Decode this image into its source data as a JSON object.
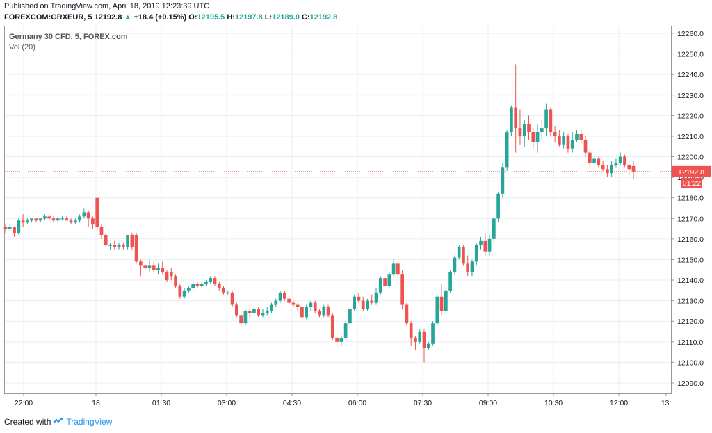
{
  "header": {
    "published": "Published on TradingView.com, April 18, 2019 12:23:39 UTC",
    "symbol_line": "FOREXCOM:GRXEUR, 5",
    "last": "12192.8",
    "change": "+18.4 (+0.15%)",
    "o_label": "O:",
    "o_value": "12195.5",
    "h_label": "H:",
    "h_value": "12197.8",
    "l_label": "L:",
    "l_value": "12189.0",
    "c_label": "C:",
    "c_value": "12192.8"
  },
  "legend": {
    "symbol": "Germany 30 CFD, 5, FOREX.com",
    "volume": "Vol (20)"
  },
  "footer": {
    "created_with": "Created with",
    "brand": "TradingView"
  },
  "chart_data": {
    "type": "candlestick",
    "ylim": [
      12085,
      12265
    ],
    "y_ticks": [
      12090,
      12100,
      12110,
      12120,
      12130,
      12140,
      12150,
      12160,
      12170,
      12180,
      12190,
      12200,
      12210,
      12220,
      12230,
      12240,
      12250,
      12260
    ],
    "x_ticks": [
      "22:00",
      "18",
      "01:30",
      "03:00",
      "04:30",
      "06:00",
      "07:30",
      "09:00",
      "10:30",
      "12:00",
      "13:"
    ],
    "last_price": 12192.8,
    "last_price_label": "12192.8",
    "countdown": "01:22",
    "colors": {
      "up": "#26a69a",
      "down": "#ef5350",
      "grid": "#e9ecf1",
      "price_line": "#ef5350"
    },
    "candles": [
      [
        12166,
        12167,
        12163,
        12165
      ],
      [
        12165,
        12167,
        12164,
        12166
      ],
      [
        12166,
        12166,
        12161,
        12163
      ],
      [
        12163,
        12170,
        12162,
        12169
      ],
      [
        12169,
        12172,
        12166,
        12168
      ],
      [
        12168,
        12170,
        12167,
        12169
      ],
      [
        12169,
        12170,
        12168,
        12170
      ],
      [
        12170,
        12170,
        12168,
        12169
      ],
      [
        12169,
        12170,
        12168,
        12170
      ],
      [
        12170,
        12172,
        12169,
        12171
      ],
      [
        12171,
        12172,
        12169,
        12170
      ],
      [
        12170,
        12171,
        12168,
        12169
      ],
      [
        12169,
        12171,
        12168,
        12170
      ],
      [
        12170,
        12171,
        12169,
        12170
      ],
      [
        12170,
        12171,
        12169,
        12169
      ],
      [
        12169,
        12170,
        12167,
        12168
      ],
      [
        12168,
        12170,
        12167,
        12169
      ],
      [
        12169,
        12172,
        12168,
        12171
      ],
      [
        12171,
        12175,
        12170,
        12173
      ],
      [
        12173,
        12174,
        12166,
        12170
      ],
      [
        12170,
        12171,
        12165,
        12167
      ],
      [
        12180,
        12180,
        12164,
        12166
      ],
      [
        12166,
        12167,
        12160,
        12162
      ],
      [
        12162,
        12163,
        12156,
        12157
      ],
      [
        12157,
        12158,
        12155,
        12157
      ],
      [
        12157,
        12159,
        12155,
        12156
      ],
      [
        12156,
        12158,
        12155,
        12157
      ],
      [
        12157,
        12158,
        12155,
        12156
      ],
      [
        12156,
        12162,
        12155,
        12162
      ],
      [
        12162,
        12163,
        12155,
        12156
      ],
      [
        12162,
        12163,
        12148,
        12149
      ],
      [
        12149,
        12150,
        12142,
        12147
      ],
      [
        12147,
        12148,
        12145,
        12146
      ],
      [
        12146,
        12150,
        12144,
        12147
      ],
      [
        12147,
        12149,
        12144,
        12145
      ],
      [
        12145,
        12148,
        12143,
        12146
      ],
      [
        12146,
        12149,
        12143,
        12144
      ],
      [
        12144,
        12145,
        12139,
        12140
      ],
      [
        12144,
        12146,
        12140,
        12142
      ],
      [
        12142,
        12143,
        12136,
        12137
      ],
      [
        12137,
        12138,
        12131,
        12132
      ],
      [
        12132,
        12136,
        12131,
        12135
      ],
      [
        12135,
        12137,
        12134,
        12136
      ],
      [
        12136,
        12139,
        12135,
        12138
      ],
      [
        12138,
        12139,
        12136,
        12137
      ],
      [
        12137,
        12139,
        12136,
        12138
      ],
      [
        12138,
        12140,
        12137,
        12139
      ],
      [
        12139,
        12142,
        12138,
        12141
      ],
      [
        12141,
        12142,
        12137,
        12138
      ],
      [
        12138,
        12139,
        12135,
        12136
      ],
      [
        12136,
        12137,
        12133,
        12134
      ],
      [
        12134,
        12135,
        12133,
        12134
      ],
      [
        12134,
        12135,
        12127,
        12128
      ],
      [
        12128,
        12129,
        12122,
        12123
      ],
      [
        12123,
        12124,
        12117,
        12119
      ],
      [
        12119,
        12126,
        12118,
        12125
      ],
      [
        12125,
        12126,
        12122,
        12124
      ],
      [
        12124,
        12127,
        12123,
        12126
      ],
      [
        12126,
        12127,
        12122,
        12123
      ],
      [
        12123,
        12126,
        12122,
        12124
      ],
      [
        12124,
        12127,
        12123,
        12125
      ],
      [
        12125,
        12129,
        12124,
        12128
      ],
      [
        12128,
        12131,
        12127,
        12130
      ],
      [
        12130,
        12135,
        12129,
        12134
      ],
      [
        12134,
        12135,
        12130,
        12131
      ],
      [
        12131,
        12132,
        12128,
        12129
      ],
      [
        12129,
        12130,
        12127,
        12128
      ],
      [
        12128,
        12129,
        12125,
        12127
      ],
      [
        12127,
        12129,
        12121,
        12122
      ],
      [
        12122,
        12128,
        12121,
        12127
      ],
      [
        12127,
        12130,
        12125,
        12129
      ],
      [
        12129,
        12130,
        12124,
        12125
      ],
      [
        12125,
        12126,
        12122,
        12123
      ],
      [
        12123,
        12128,
        12122,
        12127
      ],
      [
        12127,
        12128,
        12122,
        12123
      ],
      [
        12123,
        12124,
        12111,
        12112
      ],
      [
        12112,
        12113,
        12107,
        12110
      ],
      [
        12110,
        12113,
        12108,
        12112
      ],
      [
        12112,
        12120,
        12111,
        12119
      ],
      [
        12119,
        12127,
        12118,
        12126
      ],
      [
        12126,
        12133,
        12125,
        12132
      ],
      [
        12132,
        12134,
        12129,
        12130
      ],
      [
        12130,
        12132,
        12125,
        12126
      ],
      [
        12126,
        12131,
        12125,
        12130
      ],
      [
        12130,
        12133,
        12128,
        12129
      ],
      [
        12129,
        12136,
        12128,
        12134
      ],
      [
        12134,
        12142,
        12133,
        12141
      ],
      [
        12141,
        12143,
        12136,
        12137
      ],
      [
        12137,
        12144,
        12136,
        12143
      ],
      [
        12143,
        12150,
        12142,
        12148
      ],
      [
        12148,
        12149,
        12141,
        12143
      ],
      [
        12143,
        12145,
        12126,
        12128
      ],
      [
        12128,
        12129,
        12118,
        12119
      ],
      [
        12119,
        12120,
        12108,
        12112
      ],
      [
        12112,
        12113,
        12106,
        12110
      ],
      [
        12110,
        12116,
        12109,
        12115
      ],
      [
        12115,
        12116,
        12100,
        12107
      ],
      [
        12107,
        12110,
        12106,
        12109
      ],
      [
        12109,
        12120,
        12108,
        12119
      ],
      [
        12119,
        12133,
        12118,
        12132
      ],
      [
        12132,
        12138,
        12123,
        12125
      ],
      [
        12125,
        12136,
        12124,
        12135
      ],
      [
        12135,
        12145,
        12134,
        12144
      ],
      [
        12144,
        12152,
        12143,
        12151
      ],
      [
        12151,
        12157,
        12150,
        12156
      ],
      [
        12156,
        12157,
        12147,
        12148
      ],
      [
        12148,
        12152,
        12142,
        12144
      ],
      [
        12144,
        12150,
        12142,
        12149
      ],
      [
        12149,
        12158,
        12147,
        12157
      ],
      [
        12157,
        12161,
        12155,
        12159
      ],
      [
        12159,
        12163,
        12152,
        12154
      ],
      [
        12154,
        12162,
        12152,
        12160
      ],
      [
        12160,
        12171,
        12158,
        12170
      ],
      [
        12170,
        12183,
        12168,
        12182
      ],
      [
        12182,
        12197,
        12180,
        12195
      ],
      [
        12195,
        12213,
        12193,
        12212
      ],
      [
        12212,
        12225,
        12210,
        12224
      ],
      [
        12224,
        12245,
        12202,
        12214
      ],
      [
        12214,
        12223,
        12206,
        12210
      ],
      [
        12210,
        12218,
        12205,
        12216
      ],
      [
        12216,
        12220,
        12208,
        12212
      ],
      [
        12212,
        12214,
        12204,
        12207
      ],
      [
        12207,
        12216,
        12202,
        12212
      ],
      [
        12212,
        12218,
        12208,
        12214
      ],
      [
        12214,
        12226,
        12210,
        12223
      ],
      [
        12223,
        12224,
        12210,
        12212
      ],
      [
        12212,
        12215,
        12207,
        12210
      ],
      [
        12210,
        12213,
        12205,
        12206
      ],
      [
        12206,
        12212,
        12204,
        12210
      ],
      [
        12210,
        12211,
        12202,
        12204
      ],
      [
        12204,
        12212,
        12202,
        12208
      ],
      [
        12208,
        12213,
        12207,
        12211
      ],
      [
        12211,
        12213,
        12206,
        12208
      ],
      [
        12208,
        12210,
        12200,
        12202
      ],
      [
        12202,
        12203,
        12195,
        12197
      ],
      [
        12197,
        12201,
        12195,
        12199
      ],
      [
        12199,
        12200,
        12195,
        12196
      ],
      [
        12196,
        12198,
        12193,
        12194
      ],
      [
        12194,
        12196,
        12190,
        12192
      ],
      [
        12192,
        12198,
        12190,
        12196
      ],
      [
        12196,
        12199,
        12195,
        12197
      ],
      [
        12197,
        12202,
        12196,
        12200
      ],
      [
        12200,
        12201,
        12195,
        12196
      ],
      [
        12196,
        12197,
        12191,
        12194
      ],
      [
        12195.5,
        12197.8,
        12189,
        12192.8
      ]
    ]
  }
}
